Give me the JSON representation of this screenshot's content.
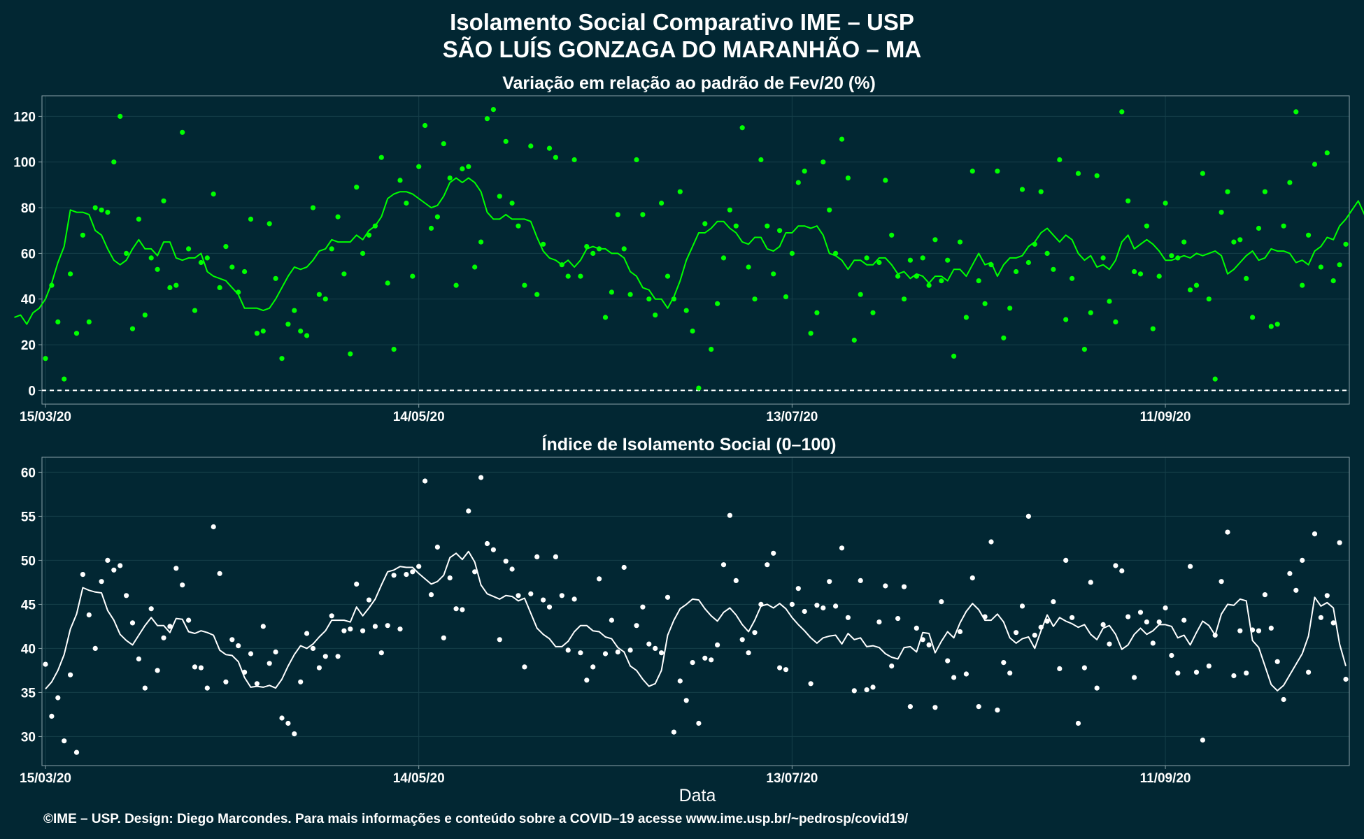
{
  "title_line1": "Isolamento Social Comparativo IME – USP",
  "title_line2": "SÃO LUÍS GONZAGA DO MARANHÃO – MA",
  "caption": "©IME – USP. Design: Diego Marcondes. Para mais informações e conteúdo sobre a COVID–19 acesse www.ime.usp.br/~pedrosp/covid19/",
  "colors": {
    "background": "#022733",
    "panel_border": "#8aa2a8",
    "grid": "#163f4a",
    "green": "#00ff00",
    "white": "#ffffff"
  },
  "chart_data": [
    {
      "type": "scatter",
      "title": "Variação em relação ao padrão de Fev/20 (%)",
      "xlabel": "",
      "ylabel": "",
      "x_start": "15/03/20",
      "x_end": "04/10/20",
      "x_tick_labels": [
        "15/03/20",
        "14/05/20",
        "13/07/20",
        "11/09/20"
      ],
      "y_ticks": [
        0,
        20,
        40,
        60,
        80,
        100,
        120
      ],
      "ylim": [
        -6,
        129
      ],
      "reference_line": 0,
      "grid": true,
      "legend": "none",
      "series": [
        {
          "kind": "points",
          "color": "#00ff00",
          "values": [
            14,
            46,
            30,
            5,
            51,
            25,
            68,
            30,
            80,
            79,
            78,
            100,
            120,
            60,
            27,
            75,
            33,
            58,
            53,
            83,
            45,
            46,
            113,
            62,
            35,
            56,
            58,
            86,
            45,
            63,
            54,
            43,
            52,
            75,
            25,
            26,
            73,
            49,
            14,
            29,
            35,
            26,
            24,
            80,
            42,
            40,
            62,
            76,
            51,
            16,
            89,
            60,
            68,
            72,
            102,
            47,
            18,
            92,
            82,
            50,
            98,
            116,
            71,
            76,
            108,
            93,
            46,
            97,
            98,
            54,
            65,
            119,
            123,
            85,
            109,
            82,
            72,
            46,
            107,
            42,
            64,
            106,
            102,
            55,
            50,
            101,
            50,
            63,
            60,
            62,
            32,
            43,
            77,
            62,
            42,
            101,
            77,
            40,
            33,
            82,
            50,
            40,
            87,
            35,
            26,
            1,
            73,
            18,
            38,
            58,
            79,
            72,
            115,
            54,
            40,
            101,
            72,
            51,
            70,
            41,
            60,
            91,
            96,
            25,
            34,
            100,
            79,
            60,
            110,
            93,
            22,
            42,
            58,
            34,
            56,
            92,
            68,
            50,
            40,
            57,
            50,
            58,
            46,
            66,
            48,
            57,
            15,
            65,
            32,
            96,
            48,
            38,
            55,
            96,
            23,
            36,
            52,
            88,
            56,
            64,
            87,
            60,
            53,
            101,
            31,
            49,
            95,
            18,
            34,
            94,
            58,
            39,
            30,
            122,
            83,
            52,
            51,
            72,
            27,
            50,
            82,
            59,
            58,
            65,
            44,
            46,
            95,
            40,
            5,
            78,
            87,
            65,
            66,
            49,
            32,
            71,
            87,
            28,
            29,
            72,
            91,
            122,
            46,
            68,
            99,
            54,
            104,
            48,
            55,
            64
          ]
        },
        {
          "kind": "line",
          "name": "",
          "color": "#00ff00",
          "values": [
            32,
            33,
            29,
            34,
            36,
            40,
            47,
            56,
            63,
            79,
            78,
            78,
            77,
            70,
            68,
            62,
            57,
            55,
            57,
            62,
            66,
            62,
            62,
            59,
            65,
            65,
            58,
            57,
            58,
            58,
            60,
            52,
            50,
            49,
            48,
            45,
            42,
            36,
            36,
            36,
            35,
            36,
            40,
            45,
            50,
            54,
            53,
            54,
            57,
            61,
            62,
            66,
            65,
            65,
            65,
            68,
            66,
            70,
            72,
            76,
            84,
            86,
            87,
            87,
            86,
            84,
            82,
            80,
            81,
            85,
            91,
            93,
            91,
            93,
            91,
            87,
            78,
            75,
            75,
            77,
            75,
            75,
            75,
            74,
            67,
            61,
            58,
            57,
            55,
            57,
            54,
            57,
            62,
            63,
            62,
            62,
            60,
            60,
            58,
            52,
            50,
            45,
            44,
            40,
            40,
            36,
            41,
            48,
            57,
            63,
            69,
            69,
            71,
            74,
            74,
            71,
            69,
            65,
            64,
            67,
            67,
            62,
            61,
            63,
            69,
            69,
            72,
            72,
            71,
            72,
            68,
            60,
            59,
            57,
            53,
            57,
            57,
            55,
            55,
            58,
            58,
            55,
            51,
            52,
            49,
            51,
            50,
            47,
            50,
            50,
            48,
            53,
            53,
            50,
            55,
            60,
            55,
            56,
            50,
            55,
            58,
            58,
            59,
            63,
            65,
            69,
            71,
            68,
            65,
            68,
            66,
            60,
            57,
            59,
            54,
            55,
            53,
            57,
            65,
            68,
            62,
            64,
            66,
            64,
            61,
            57,
            57,
            58,
            59,
            58,
            60,
            59,
            60,
            61,
            59,
            51,
            53,
            56,
            59,
            61,
            57,
            58,
            62,
            61,
            61,
            60,
            56,
            57,
            55,
            61,
            63,
            67,
            66,
            72,
            75,
            79,
            83,
            77,
            68,
            70
          ]
        }
      ]
    },
    {
      "type": "scatter",
      "title": "Índice de Isolamento Social (0–100)",
      "xlabel": "Data",
      "ylabel": "",
      "x_start": "15/03/20",
      "x_end": "04/10/20",
      "x_tick_labels": [
        "15/03/20",
        "14/05/20",
        "13/07/20",
        "11/09/20"
      ],
      "y_ticks": [
        30,
        35,
        40,
        45,
        50,
        55,
        60
      ],
      "ylim": [
        26.7,
        61.7
      ],
      "grid": true,
      "legend": "none",
      "series": [
        {
          "kind": "points",
          "color": "#ffffff",
          "values": [
            38.2,
            32.3,
            34.4,
            29.5,
            37,
            28.2,
            48.4,
            43.8,
            40,
            47.6,
            50,
            48.9,
            49.4,
            46,
            42.9,
            38.8,
            35.5,
            44.5,
            37.5,
            41.2,
            42.5,
            49.1,
            47.2,
            43.2,
            37.9,
            37.8,
            35.5,
            53.8,
            48.5,
            36.2,
            41,
            40.3,
            37.3,
            39.4,
            36,
            42.5,
            38.3,
            39.6,
            32.1,
            31.5,
            30.3,
            36.2,
            41.7,
            40,
            37.8,
            39.1,
            43.7,
            39.1,
            42,
            42.2,
            47.3,
            42,
            45.5,
            42.5,
            39.5,
            42.6,
            48.3,
            42.2,
            48.4,
            48.7,
            49.3,
            59,
            46.1,
            51.5,
            41.2,
            48,
            44.5,
            44.4,
            55.6,
            48.7,
            59.4,
            51.9,
            51.2,
            41,
            49.9,
            49,
            46,
            37.9,
            46.2,
            50.4,
            45.5,
            44.7,
            50.4,
            46,
            39.8,
            45.6,
            39.5,
            36.4,
            37.9,
            47.9,
            39.4,
            43.2,
            39.6,
            49.2,
            39.8,
            42.6,
            44.7,
            40.5,
            40,
            39.5,
            45.8,
            30.5,
            36.3,
            34.1,
            38.4,
            31.5,
            38.9,
            38.7,
            40.4,
            49.5,
            55.1,
            47.7,
            41,
            39.5,
            41.8,
            45,
            49.5,
            50.8,
            37.8,
            37.6,
            45,
            46.8,
            44.2,
            36,
            44.9,
            44.6,
            47.6,
            44.8,
            51.4,
            43.5,
            35.2,
            47.7,
            35.3,
            35.6,
            43,
            47.1,
            38,
            43.4,
            47,
            33.4,
            42.3,
            41,
            40.4,
            33.3,
            45.3,
            38.6,
            36.7,
            41.9,
            37.1,
            48,
            33.4,
            43.6,
            52.1,
            33,
            38.4,
            37.2,
            41.8,
            44.8,
            55,
            41.5,
            42.4,
            43.1,
            45.3,
            37.7,
            50,
            43.5,
            31.5,
            37.8,
            47.5,
            35.5,
            42.7,
            40.5,
            49.4,
            48.8,
            43.6,
            36.7,
            44.1,
            43,
            40.6,
            43,
            44.6,
            39.2,
            37.2,
            43.2,
            49.3,
            37.3,
            29.6,
            38,
            41.5,
            47.6,
            53.2,
            36.9,
            42,
            37.2,
            42.1,
            42,
            46.1,
            42.3,
            38.5,
            34.2,
            48.5,
            46.6,
            50,
            37.3,
            53,
            43.5,
            46,
            42.9,
            52,
            36.5
          ]
        },
        {
          "kind": "line",
          "name": "",
          "color": "#ffffff",
          "values": [
            35.4,
            36.2,
            37.5,
            39.3,
            42.2,
            43.9,
            46.9,
            46.6,
            46.4,
            46.3,
            44.3,
            43.2,
            41.6,
            40.9,
            40.4,
            41.5,
            42.6,
            43.5,
            42.6,
            42.6,
            41.8,
            43.4,
            43.3,
            41.9,
            41.7,
            42,
            41.8,
            41.5,
            39.8,
            39.3,
            39.2,
            38.5,
            36.7,
            35.6,
            35.7,
            35.6,
            35.8,
            35.5,
            36.5,
            38,
            39.3,
            40.3,
            40,
            40.5,
            41.3,
            42,
            43.2,
            43.2,
            43.2,
            43,
            44.7,
            43.7,
            44.6,
            45.6,
            47.2,
            48.7,
            48.9,
            49.3,
            49.2,
            49.2,
            48.5,
            47.9,
            47.3,
            47.6,
            48.3,
            50.3,
            50.8,
            50.1,
            51,
            49.8,
            47.2,
            46.2,
            45.9,
            45.6,
            46,
            45.9,
            45.4,
            45.7,
            44,
            42.3,
            41.6,
            41.1,
            40.2,
            40.2,
            40.8,
            41.9,
            42.6,
            42.6,
            42,
            41.9,
            41.3,
            41.1,
            40.1,
            39.6,
            38,
            37.5,
            36.5,
            35.7,
            36,
            37.5,
            41.5,
            43.2,
            44.5,
            45,
            45.6,
            45.5,
            44.5,
            43.7,
            43.1,
            44.1,
            44.6,
            43.8,
            42.7,
            41.9,
            43.2,
            44.8,
            45,
            44.6,
            45.1,
            44.5,
            43.5,
            42.7,
            42,
            41.2,
            40.6,
            41.2,
            41.4,
            41.5,
            40.5,
            41.7,
            41,
            41.2,
            40.2,
            40.3,
            40.1,
            39.4,
            39,
            38.8,
            40.1,
            40.2,
            39.6,
            41.8,
            41.7,
            39.5,
            40.8,
            41.9,
            41.2,
            42.9,
            44.2,
            45.1,
            44.4,
            43.2,
            43.2,
            43.9,
            43,
            41.2,
            40.6,
            41.1,
            41.3,
            40,
            42,
            43.8,
            42.5,
            43.5,
            43.1,
            42.8,
            42.4,
            42.7,
            41.6,
            41,
            42.3,
            42.6,
            41.6,
            39.9,
            40.4,
            41.6,
            42.3,
            41.6,
            42,
            42.7,
            42.7,
            42.5,
            41.2,
            41.5,
            40.4,
            41.8,
            43.1,
            42.6,
            41.5,
            43.9,
            45,
            44.9,
            45.6,
            45.4,
            40.9,
            40.1,
            38,
            35.9,
            35.2,
            35.8,
            37,
            38.2,
            39.4,
            41.4,
            45.8,
            44.8,
            45.2,
            44.6,
            40.5,
            38
          ]
        }
      ]
    }
  ]
}
